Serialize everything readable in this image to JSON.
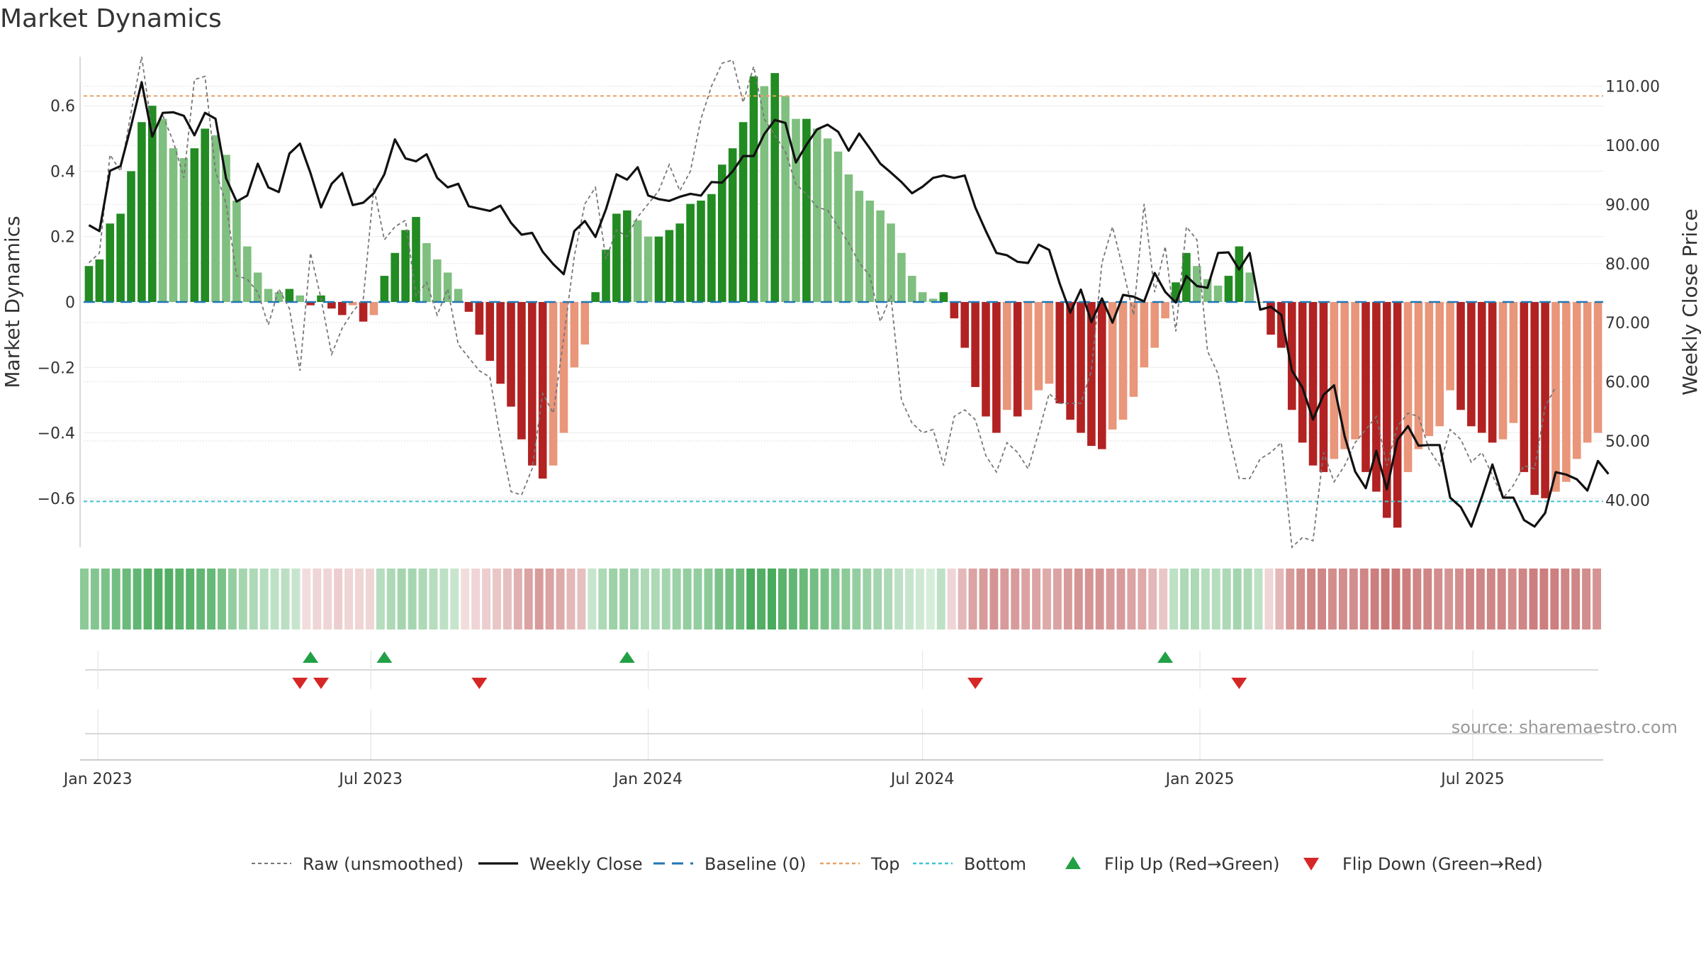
{
  "chart_data": {
    "type": "bar",
    "title": "Market Dynamics",
    "ylabel_left": "Market Dynamics",
    "ylabel_right": "Weekly Close Price",
    "ylim_left": [
      -0.75,
      0.75
    ],
    "ylim_right": [
      32,
      115
    ],
    "yticks_left": [
      0.6,
      0.4,
      0.2,
      0,
      -0.2,
      -0.4,
      -0.6
    ],
    "yticks_left_labels": [
      "0.6",
      "0.4",
      "0.2",
      "0",
      "−0.2",
      "−0.4",
      "−0.6"
    ],
    "yticks_right": [
      110,
      100,
      90,
      80,
      70,
      60,
      50,
      40
    ],
    "yticks_right_labels": [
      "110.00",
      "100.00",
      "90.00",
      "80.00",
      "70.00",
      "60.00",
      "50.00",
      "40.00"
    ],
    "x_start": "2022-12-26",
    "x_interval_days": 7,
    "xticks": [
      "2023-01-01",
      "2023-07-01",
      "2024-01-01",
      "2024-07-01",
      "2025-01-01",
      "2025-07-01"
    ],
    "xtick_labels": [
      "Jan 2023",
      "Jul 2023",
      "Jan 2024",
      "Jul 2024",
      "Jan 2025",
      "Jul 2025"
    ],
    "top_threshold": 0.63,
    "bottom_threshold": -0.61,
    "baseline": 0,
    "momentum": [
      0.11,
      0.13,
      0.24,
      0.27,
      0.4,
      0.55,
      0.6,
      0.56,
      0.47,
      0.44,
      0.47,
      0.53,
      0.51,
      0.45,
      0.31,
      0.17,
      0.09,
      0.04,
      0.03,
      0.04,
      0.02,
      -0.01,
      0.02,
      -0.02,
      -0.04,
      -0.01,
      -0.06,
      -0.04,
      0.08,
      0.15,
      0.22,
      0.26,
      0.18,
      0.13,
      0.09,
      0.04,
      -0.03,
      -0.1,
      -0.18,
      -0.25,
      -0.32,
      -0.42,
      -0.5,
      -0.54,
      -0.5,
      -0.4,
      -0.2,
      -0.13,
      0.03,
      0.16,
      0.27,
      0.28,
      0.25,
      0.2,
      0.2,
      0.22,
      0.24,
      0.3,
      0.31,
      0.33,
      0.42,
      0.47,
      0.55,
      0.69,
      0.66,
      0.7,
      0.63,
      0.56,
      0.56,
      0.53,
      0.5,
      0.46,
      0.39,
      0.34,
      0.31,
      0.28,
      0.24,
      0.15,
      0.08,
      0.03,
      0.01,
      0.03,
      -0.05,
      -0.14,
      -0.26,
      -0.35,
      -0.4,
      -0.33,
      -0.35,
      -0.33,
      -0.27,
      -0.25,
      -0.31,
      -0.36,
      -0.4,
      -0.44,
      -0.45,
      -0.39,
      -0.36,
      -0.29,
      -0.2,
      -0.14,
      -0.05,
      0.06,
      0.15,
      0.11,
      0.07,
      0.05,
      0.08,
      0.17,
      0.09,
      0,
      -0.1,
      -0.14,
      -0.33,
      -0.43,
      -0.5,
      -0.52,
      -0.48,
      -0.45,
      -0.42,
      -0.52,
      -0.58,
      -0.66,
      -0.69,
      -0.52,
      -0.45,
      -0.41,
      -0.38,
      -0.27,
      -0.33,
      -0.38,
      -0.4,
      -0.43,
      -0.42,
      -0.37,
      -0.52,
      -0.59,
      -0.6,
      -0.58,
      -0.55,
      -0.48,
      -0.43,
      -0.4
    ],
    "raw": [
      0.12,
      0.15,
      0.45,
      0.4,
      0.58,
      0.75,
      0.52,
      0.57,
      0.49,
      0.38,
      0.68,
      0.69,
      0.4,
      0.3,
      0.08,
      0.07,
      0.03,
      -0.07,
      0.04,
      -0.02,
      -0.21,
      0.15,
      0.01,
      -0.16,
      -0.08,
      -0.03,
      0.01,
      0.35,
      0.19,
      0.23,
      0.25,
      0.02,
      0.06,
      -0.04,
      0.04,
      -0.13,
      -0.17,
      -0.21,
      -0.23,
      -0.42,
      -0.58,
      -0.59,
      -0.51,
      -0.28,
      -0.34,
      -0.11,
      0.14,
      0.3,
      0.35,
      0.13,
      0.22,
      0.2,
      0.26,
      0.3,
      0.34,
      0.42,
      0.34,
      0.4,
      0.56,
      0.66,
      0.73,
      0.74,
      0.61,
      0.72,
      0.56,
      0.51,
      0.46,
      0.36,
      0.33,
      0.29,
      0.28,
      0.23,
      0.18,
      0.12,
      0.08,
      -0.06,
      0.02,
      -0.3,
      -0.37,
      -0.4,
      -0.39,
      -0.5,
      -0.35,
      -0.33,
      -0.36,
      -0.47,
      -0.52,
      -0.43,
      -0.46,
      -0.51,
      -0.4,
      -0.28,
      -0.31,
      -0.31,
      -0.31,
      -0.21,
      0.12,
      0.23,
      0.1,
      -0.04,
      0.3,
      0.03,
      0.17,
      -0.09,
      0.23,
      0.19,
      -0.15,
      -0.22,
      -0.4,
      -0.54,
      -0.54,
      -0.48,
      -0.46,
      -0.43,
      -0.75,
      -0.72,
      -0.73,
      -0.46,
      -0.55,
      -0.5,
      -0.43,
      -0.39,
      -0.35,
      -0.5,
      -0.38,
      -0.34,
      -0.35,
      -0.45,
      -0.5,
      -0.39,
      -0.42,
      -0.49,
      -0.46,
      -0.53,
      -0.6,
      -0.56,
      -0.5,
      -0.51,
      -0.32,
      -0.26
    ],
    "weekly_close": [
      86.5,
      85.5,
      95.7,
      96.5,
      103.3,
      110.7,
      101.5,
      105.5,
      105.6,
      105,
      101.7,
      105.5,
      104.5,
      94.4,
      90.5,
      91.5,
      96.9,
      92.9,
      92.1,
      98.6,
      100.3,
      95.3,
      89.5,
      93.5,
      95.3,
      89.9,
      90.3,
      91.9,
      95.1,
      101,
      97.8,
      97.3,
      98.5,
      94.5,
      92.9,
      93.5,
      89.7,
      89.3,
      88.9,
      89.8,
      86.9,
      84.9,
      85.2,
      82,
      79.9,
      78.2,
      85.5,
      87.2,
      84.5,
      89.2,
      95.1,
      94.2,
      96.3,
      91.5,
      90.9,
      90.6,
      91.3,
      91.8,
      91.5,
      93.8,
      93.7,
      95.6,
      98.2,
      98.2,
      101.9,
      104.3,
      103.8,
      97.1,
      100.1,
      102.7,
      103.5,
      102.3,
      99.1,
      102,
      99.5,
      96.9,
      95.4,
      93.8,
      91.9,
      93,
      94.5,
      94.9,
      94.5,
      94.9,
      89.5,
      85.5,
      81.8,
      81.4,
      80.3,
      80.1,
      83.2,
      82.3,
      76.6,
      71.7,
      75.6,
      70.1,
      74.1,
      70,
      74.7,
      74.4,
      73.6,
      78.4,
      75.2,
      73.4,
      77.9,
      76.2,
      75.9,
      81.8,
      81.9,
      79,
      81.8,
      72.2,
      72.7,
      71.3,
      61.9,
      59,
      53.6,
      57.8,
      59.4,
      50.8,
      44.8,
      42,
      48.3,
      41.8,
      50.2,
      52.5,
      49.2,
      49.3,
      49.3,
      40.4,
      38.8,
      35.5,
      40.5,
      46,
      40.4,
      40.4,
      36.6,
      35.5,
      37.8,
      44.7,
      44.3,
      43.5,
      41.6,
      46.6,
      44.4
    ],
    "strip_values": [
      0.5,
      0.55,
      0.6,
      0.65,
      0.7,
      0.75,
      0.8,
      0.85,
      0.85,
      0.8,
      0.8,
      0.75,
      0.72,
      0.6,
      0.45,
      0.35,
      0.3,
      0.25,
      0.2,
      0.22,
      0.15,
      -0.05,
      -0.1,
      -0.1,
      -0.15,
      -0.1,
      -0.1,
      -0.1,
      0.25,
      0.3,
      0.35,
      0.35,
      0.3,
      0.25,
      0.2,
      0.15,
      -0.05,
      -0.1,
      -0.15,
      -0.2,
      -0.25,
      -0.35,
      -0.45,
      -0.5,
      -0.45,
      -0.4,
      -0.3,
      -0.25,
      0.15,
      0.3,
      0.4,
      0.4,
      0.35,
      0.3,
      0.3,
      0.35,
      0.4,
      0.45,
      0.45,
      0.5,
      0.6,
      0.65,
      0.7,
      0.9,
      0.85,
      0.9,
      0.8,
      0.75,
      0.7,
      0.65,
      0.6,
      0.55,
      0.5,
      0.45,
      0.4,
      0.35,
      0.3,
      0.2,
      0.15,
      0.1,
      0.05,
      0.2,
      -0.1,
      -0.3,
      -0.45,
      -0.5,
      -0.55,
      -0.5,
      -0.5,
      -0.45,
      -0.45,
      -0.4,
      -0.45,
      -0.5,
      -0.55,
      -0.55,
      -0.55,
      -0.5,
      -0.5,
      -0.45,
      -0.4,
      -0.3,
      -0.2,
      0.2,
      0.3,
      0.3,
      0.25,
      0.25,
      0.3,
      0.35,
      0.3,
      0.2,
      -0.1,
      -0.3,
      -0.5,
      -0.6,
      -0.65,
      -0.65,
      -0.6,
      -0.6,
      -0.6,
      -0.65,
      -0.7,
      -0.75,
      -0.75,
      -0.7,
      -0.65,
      -0.65,
      -0.6,
      -0.55,
      -0.6,
      -0.65,
      -0.65,
      -0.65,
      -0.65,
      -0.6,
      -0.65,
      -0.7,
      -0.7,
      -0.7,
      -0.65,
      -0.65,
      -0.6,
      -0.55
    ],
    "flip_up": [
      "2023-05-22",
      "2023-07-10",
      "2023-12-18",
      "2024-12-09"
    ],
    "flip_down": [
      "2023-05-15",
      "2023-05-29",
      "2023-09-11",
      "2024-08-05",
      "2025-01-27"
    ],
    "legend": [
      "Raw (unsmoothed)",
      "Weekly Close",
      "Baseline (0)",
      "Top",
      "Bottom",
      "Flip Up (Red→Green)",
      "Flip Down (Green→Red)"
    ],
    "legend_placement": "bottom-center",
    "grid": true,
    "colors": {
      "positive_rising": "#228B22",
      "positive_falling": "#7FBF7F",
      "negative_falling": "#B22222",
      "negative_rising": "#E9967A",
      "raw": "#777777",
      "close": "#111111",
      "baseline": "#1f77b4",
      "top": "#E8A165",
      "bottom": "#3CC4D4",
      "flip_up": "#22A046",
      "flip_down": "#D62728",
      "strip_green": "#2E9E44",
      "strip_red": "#B84A4A"
    }
  },
  "source_text": "source: sharemaestro.com"
}
